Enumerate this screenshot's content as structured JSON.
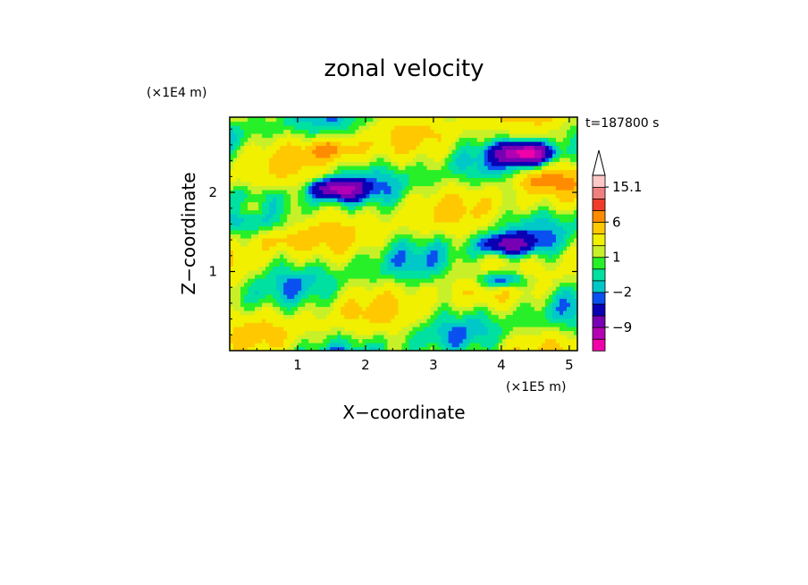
{
  "chart_data": {
    "type": "heatmap",
    "title": "zonal velocity",
    "xlabel": "X−coordinate",
    "ylabel": "Z−coordinate",
    "x_scale_note": "(×1E5 m)",
    "y_scale_note": "(×1E4 m)",
    "time_label": "t=187800 s",
    "xlim": [
      0,
      5.12
    ],
    "ylim": [
      0,
      2.95
    ],
    "x_ticks": [
      "1",
      "2",
      "3",
      "4",
      "5"
    ],
    "x_tick_values": [
      1,
      2,
      3,
      4,
      5
    ],
    "y_ticks": [
      "1",
      "2"
    ],
    "y_tick_values": [
      1,
      2
    ],
    "colorbar": {
      "labels": [
        "15.1",
        "6",
        "1",
        "−2",
        "−9"
      ],
      "label_values": [
        15.1,
        6,
        1,
        -2,
        -9
      ],
      "levels": [
        -15,
        -12,
        -9,
        -6,
        -3,
        -2,
        -1,
        0,
        1,
        2,
        4,
        6,
        8,
        11,
        15.1
      ],
      "colors": [
        "#f000a8",
        "#b400b4",
        "#7800b4",
        "#0a00b4",
        "#0a50f0",
        "#00c8c8",
        "#00e0a0",
        "#28f028",
        "#c8f028",
        "#f0f000",
        "#ffc800",
        "#ff8c00",
        "#f03c28",
        "#f08080",
        "#ffc8c8"
      ],
      "overflow": "arrow-top"
    },
    "field_features": [
      {
        "kind": "negative-core",
        "x": 1.6,
        "z": 2.05,
        "value": -9
      },
      {
        "kind": "negative-core",
        "x": 4.35,
        "z": 2.5,
        "value": -12
      },
      {
        "kind": "negative-core",
        "x": 4.1,
        "z": 1.35,
        "value": -6
      },
      {
        "kind": "negative-core",
        "x": 4.0,
        "z": 0.9,
        "value": -6
      },
      {
        "kind": "positive-band",
        "x": 1.5,
        "z": 2.55,
        "value": 6
      },
      {
        "kind": "positive-band",
        "x": 4.6,
        "z": 2.15,
        "value": 6
      },
      {
        "kind": "positive-band",
        "x": 0.75,
        "z": 1.4,
        "value": 4
      },
      {
        "kind": "positive-band",
        "x": 0.25,
        "z": 1.8,
        "value": 4
      }
    ]
  }
}
